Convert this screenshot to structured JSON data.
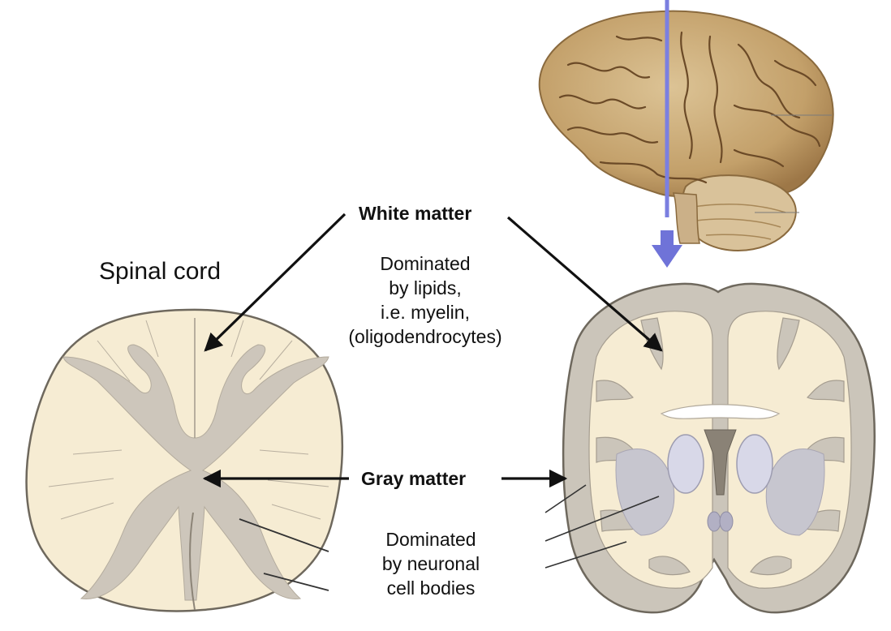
{
  "labels": {
    "spinal_cord": "Spinal cord",
    "white_matter": "White matter",
    "gray_matter": "Gray matter"
  },
  "white_matter_description": [
    "Dominated",
    "by lipids,",
    "i.e. myelin,",
    "(oligodendrocytes)"
  ],
  "gray_matter_description": [
    "Dominated",
    "by neuronal",
    "cell bodies"
  ],
  "colors": {
    "white_matter": "#f6ecd3",
    "gray_matter": "#cdc6bb",
    "outline": "#7a7468",
    "brain_surface": "#c9a874",
    "section_line": "#7b7fe0",
    "arrow": "#111111"
  }
}
